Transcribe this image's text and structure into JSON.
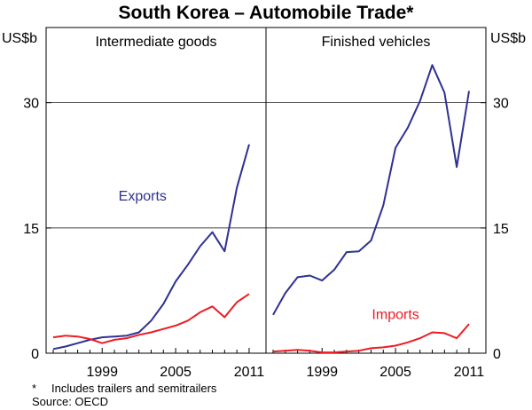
{
  "chart_data": {
    "type": "line",
    "title": "South Korea – Automobile Trade*",
    "y_unit": "US$b",
    "ylim": [
      0,
      39
    ],
    "yticks": [
      0,
      15,
      30
    ],
    "xlim": [
      1995,
      2011.8
    ],
    "xticks": [
      1999,
      2005,
      2011
    ],
    "gridlines": [
      15,
      30
    ],
    "panels": [
      {
        "title": "Intermediate goods",
        "series": [
          {
            "name": "Exports",
            "color": "#2e3192",
            "x": [
              1995,
              1996,
              1997,
              1998,
              1999,
              2000,
              2001,
              2002,
              2003,
              2004,
              2005,
              2006,
              2007,
              2008,
              2009,
              2010,
              2011
            ],
            "values": [
              0.5,
              0.8,
              1.2,
              1.6,
              1.9,
              2.0,
              2.1,
              2.5,
              3.9,
              5.9,
              8.6,
              10.6,
              12.8,
              14.5,
              12.2,
              19.8,
              25.0
            ]
          },
          {
            "name": "Imports",
            "color": "#ed1c24",
            "x": [
              1995,
              1996,
              1997,
              1998,
              1999,
              2000,
              2001,
              2002,
              2003,
              2004,
              2005,
              2006,
              2007,
              2008,
              2009,
              2010,
              2011
            ],
            "values": [
              1.9,
              2.1,
              2.0,
              1.7,
              1.2,
              1.6,
              1.8,
              2.2,
              2.5,
              2.9,
              3.3,
              3.9,
              4.9,
              5.6,
              4.3,
              6.1,
              7.1
            ]
          }
        ]
      },
      {
        "title": "Finished vehicles",
        "series": [
          {
            "name": "Exports",
            "color": "#2e3192",
            "x": [
              1995,
              1996,
              1997,
              1998,
              1999,
              2000,
              2001,
              2002,
              2003,
              2004,
              2005,
              2006,
              2007,
              2008,
              2009,
              2010,
              2011
            ],
            "values": [
              4.6,
              7.2,
              9.1,
              9.3,
              8.7,
              10.0,
              12.1,
              12.2,
              13.5,
              17.7,
              24.6,
              27.0,
              30.2,
              34.5,
              31.2,
              22.3,
              31.4
            ]
          },
          {
            "name": "Imports",
            "color": "#ed1c24",
            "x": [
              1995,
              1996,
              1997,
              1998,
              1999,
              2000,
              2001,
              2002,
              2003,
              2004,
              2005,
              2006,
              2007,
              2008,
              2009,
              2010,
              2011
            ],
            "values": [
              0.2,
              0.3,
              0.4,
              0.3,
              0.1,
              0.1,
              0.2,
              0.3,
              0.6,
              0.7,
              0.9,
              1.3,
              1.8,
              2.5,
              2.4,
              1.8,
              3.5
            ]
          }
        ]
      }
    ],
    "annotations": [
      {
        "text": "Exports",
        "panel": 0,
        "series": "Exports",
        "x": 2002.3,
        "y": 18.3
      },
      {
        "text": "Imports",
        "panel": 1,
        "series": "Imports",
        "x": 2005.0,
        "y": 4.1
      }
    ]
  },
  "footnotes": {
    "star": "*",
    "note": "Includes trailers and semitrailers",
    "source": "Source: OECD"
  }
}
